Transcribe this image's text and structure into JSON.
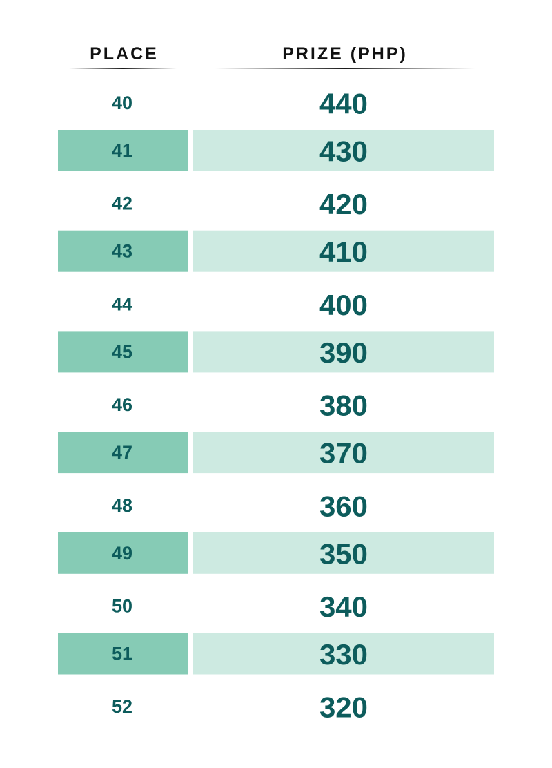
{
  "table": {
    "headers": [
      "PLACE",
      "PRIZE (PHP)"
    ],
    "rows": [
      [
        40,
        440
      ],
      [
        41,
        430
      ],
      [
        42,
        420
      ],
      [
        43,
        410
      ],
      [
        44,
        400
      ],
      [
        45,
        390
      ],
      [
        46,
        380
      ],
      [
        47,
        370
      ],
      [
        48,
        360
      ],
      [
        49,
        350
      ],
      [
        50,
        340
      ],
      [
        51,
        330
      ],
      [
        52,
        320
      ]
    ]
  }
}
